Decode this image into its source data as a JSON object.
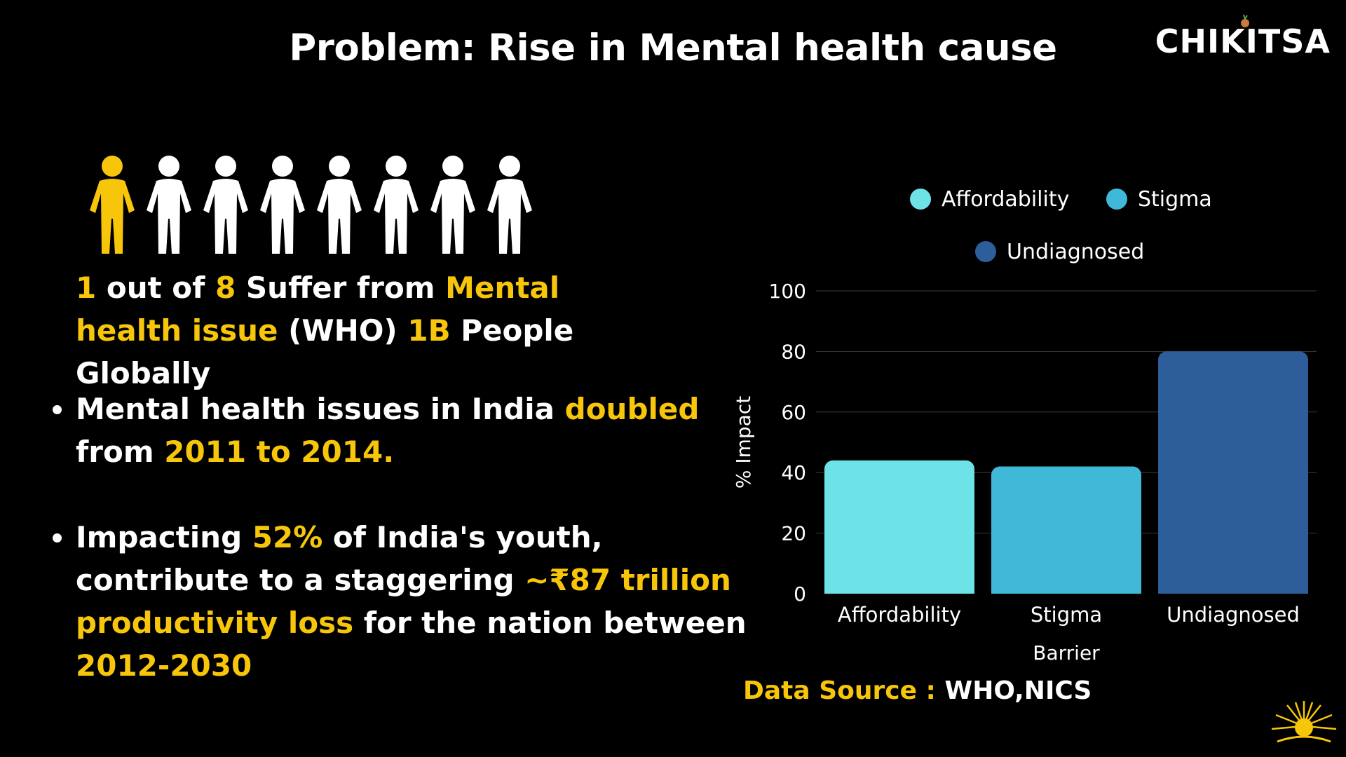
{
  "title": "Problem: Rise in Mental health cause",
  "brand": "CHIKITSA",
  "people": {
    "total": 8,
    "highlighted": 1,
    "highlight_color": "#f7c60a",
    "base_color": "#ffffff"
  },
  "stat": {
    "n1": "1",
    "t1": " out of ",
    "n2": "8",
    "t2": " Suffer from ",
    "h1": "Mental health issue",
    "t3": " (WHO) ",
    "h2": "1B",
    "t4": " People Globally"
  },
  "bullets": [
    {
      "t1": "Mental health issues in India ",
      "h1": "doubled",
      "t2": " from ",
      "h2": "2011 to 2014."
    },
    {
      "t1": "Impacting ",
      "h1": "52%",
      "t2": " of India's youth, contribute to a staggering  ",
      "h2": "~₹87 trillion productivity loss",
      "t3": " for the nation between ",
      "h3": "2012-2030"
    }
  ],
  "source": {
    "label": "Data Source : ",
    "value": "WHO,NICS"
  },
  "chart_data": {
    "type": "bar",
    "categories": [
      "Affordability",
      "Stigma",
      "Undiagnosed"
    ],
    "values": [
      44,
      42,
      80
    ],
    "colors": [
      "#6de3e8",
      "#40b8d8",
      "#2e5e9a"
    ],
    "xlabel": "Barrier",
    "ylabel": "% Impact",
    "ylim": [
      0,
      100
    ],
    "yticks": [
      0,
      20,
      40,
      60,
      80,
      100
    ],
    "grid": true,
    "legend_position": "top"
  }
}
